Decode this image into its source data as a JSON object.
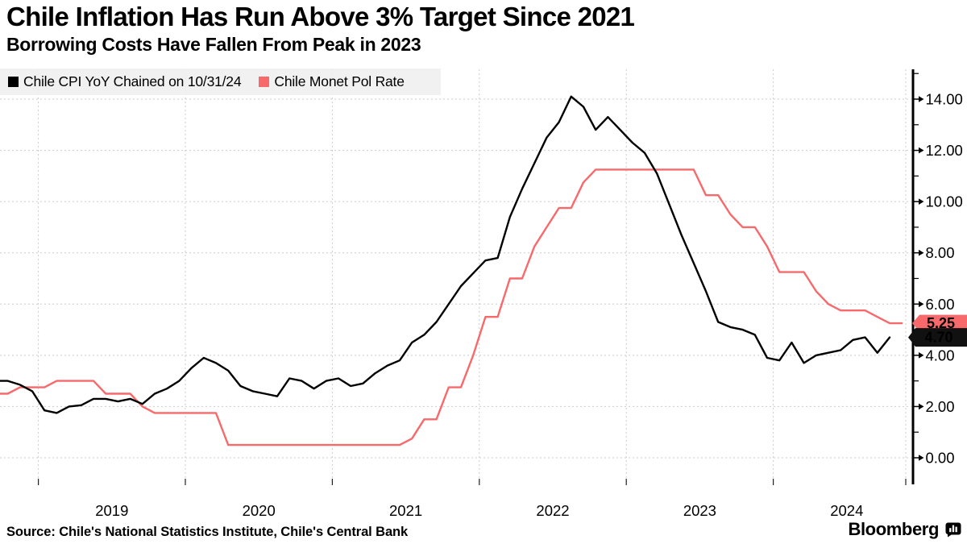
{
  "header": {
    "title": "Chile Inflation Has Run Above 3% Target Since 2021",
    "subtitle": "Borrowing Costs Have Fallen From Peak in 2023"
  },
  "footer": {
    "source": "Source: Chile's National Statistics Institute, Chile's Central Bank",
    "brand": "Bloomberg",
    "brand_icon": "bar-chart-bubble-icon"
  },
  "chart_data": {
    "type": "line",
    "frequency": "monthly",
    "start_month": "2018-10",
    "x_tick_labels": [
      "2019",
      "2020",
      "2021",
      "2022",
      "2023",
      "2024"
    ],
    "y_ticks": [
      14,
      12,
      10,
      8,
      6,
      4,
      2,
      0
    ],
    "ylim": [
      0,
      15.2
    ],
    "grid": true,
    "legend_position": "top-left",
    "axis_side": "right",
    "colors": {
      "grid": "#cbcbcb",
      "axis": "#000000"
    },
    "series": [
      {
        "key": "cpi",
        "name": "Chile CPI YoY Chained on 10/31/24",
        "color": "#000000",
        "values": [
          3.0,
          2.85,
          2.6,
          1.85,
          1.75,
          2.0,
          2.05,
          2.3,
          2.3,
          2.2,
          2.3,
          2.1,
          2.5,
          2.7,
          3.0,
          3.5,
          3.9,
          3.7,
          3.4,
          2.8,
          2.6,
          2.5,
          2.4,
          3.1,
          3.0,
          2.7,
          3.0,
          3.1,
          2.8,
          2.9,
          3.3,
          3.6,
          3.8,
          4.5,
          4.8,
          5.3,
          6.0,
          6.7,
          7.2,
          7.7,
          7.8,
          9.4,
          10.5,
          11.5,
          12.5,
          13.1,
          14.1,
          13.7,
          12.8,
          13.3,
          12.8,
          12.3,
          11.9,
          11.1,
          9.9,
          8.7,
          7.6,
          6.5,
          5.3,
          5.1,
          5.0,
          4.8,
          3.9,
          3.8,
          4.5,
          3.7,
          4.0,
          4.1,
          4.2,
          4.6,
          4.7,
          4.1,
          4.7
        ]
      },
      {
        "key": "policy_rate",
        "name": "Chile Monet Pol Rate",
        "color": "#f8696b",
        "values": [
          2.5,
          2.75,
          2.75,
          2.75,
          3.0,
          3.0,
          3.0,
          3.0,
          2.5,
          2.5,
          2.5,
          2.0,
          1.75,
          1.75,
          1.75,
          1.75,
          1.75,
          1.75,
          0.5,
          0.5,
          0.5,
          0.5,
          0.5,
          0.5,
          0.5,
          0.5,
          0.5,
          0.5,
          0.5,
          0.5,
          0.5,
          0.5,
          0.5,
          0.75,
          1.5,
          1.5,
          2.75,
          2.75,
          4.0,
          5.5,
          5.5,
          7.0,
          7.0,
          8.25,
          9.0,
          9.75,
          9.75,
          10.75,
          11.25,
          11.25,
          11.25,
          11.25,
          11.25,
          11.25,
          11.25,
          11.25,
          11.25,
          10.25,
          10.25,
          9.5,
          9.0,
          9.0,
          8.25,
          7.25,
          7.25,
          7.25,
          6.5,
          6.0,
          5.75,
          5.75,
          5.75,
          5.5,
          5.25,
          5.25
        ]
      }
    ],
    "end_labels": [
      {
        "key": "policy_rate",
        "text": "5.25",
        "value": 5.25,
        "color": "#f8696b",
        "text_color": "#ffffff"
      },
      {
        "key": "cpi",
        "text": "4.70",
        "value": 4.7,
        "color": "#111111",
        "text_color": "#ffffff"
      }
    ]
  }
}
